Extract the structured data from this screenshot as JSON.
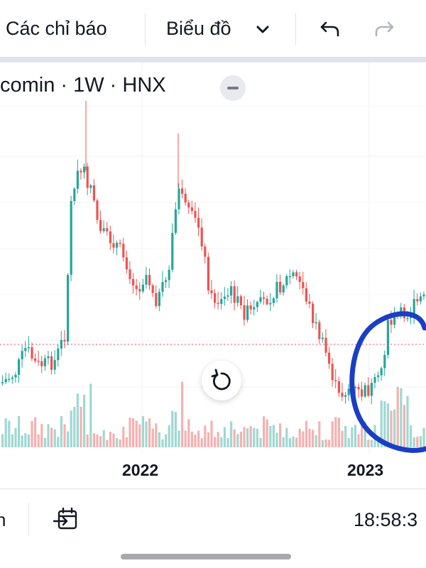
{
  "toolbar": {
    "indicators_label": "Các chỉ báo",
    "chart_type_label": "Biểu đồ",
    "icons": [
      "chevron-down-icon",
      "undo-icon",
      "redo-icon"
    ]
  },
  "legend": {
    "text": "comin · 1W · HNX"
  },
  "chart": {
    "x_ticks": [
      "2022",
      "2023"
    ],
    "colors": {
      "up": "#26a69a",
      "down": "#ef5350",
      "up_volume": "#9fd8d2",
      "down_volume": "#f5b1b1",
      "annotation": "#1a3ec4"
    }
  },
  "bottom": {
    "left_text": "n",
    "time": "18:58:3",
    "icons": [
      "range-icon"
    ]
  }
}
